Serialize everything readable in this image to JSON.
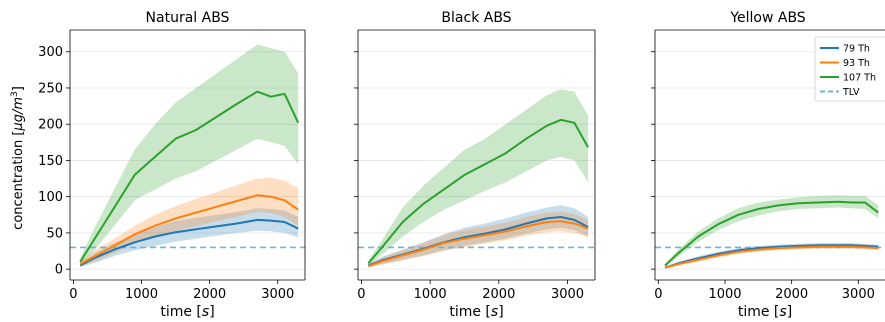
{
  "ylabel": "concentration [µg/m³]",
  "colors": {
    "79 Th": "#1f77b4",
    "93 Th": "#ff7f0e",
    "107 Th": "#2ca02c",
    "TLV": "#6fb3d8"
  },
  "chart_data": [
    {
      "type": "line",
      "title": "Natural ABS",
      "xlabel": "time [s]",
      "ylabel": "concentration [µg/m³]",
      "xlim": [
        -50,
        3400
      ],
      "ylim": [
        -15,
        330
      ],
      "xticks": [
        0,
        1000,
        2000,
        3000
      ],
      "yticks": [
        0,
        50,
        100,
        150,
        200,
        250,
        300
      ],
      "grid": true,
      "tlv": 30,
      "x": [
        100,
        300,
        600,
        900,
        1200,
        1500,
        1800,
        2100,
        2400,
        2700,
        2900,
        3100,
        3300
      ],
      "series": [
        {
          "name": "79 Th",
          "values": [
            5,
            15,
            27,
            37,
            45,
            51,
            55,
            59,
            63,
            68,
            67,
            65,
            56
          ],
          "lower": [
            3,
            8,
            18,
            26,
            32,
            38,
            42,
            46,
            50,
            53,
            52,
            50,
            44
          ],
          "upper": [
            7,
            22,
            36,
            48,
            58,
            66,
            71,
            75,
            79,
            84,
            83,
            81,
            72
          ]
        },
        {
          "name": "93 Th",
          "values": [
            7,
            17,
            32,
            48,
            60,
            70,
            78,
            86,
            94,
            102,
            100,
            95,
            82
          ],
          "lower": [
            4,
            10,
            22,
            36,
            45,
            53,
            59,
            66,
            72,
            79,
            77,
            72,
            60
          ],
          "upper": [
            10,
            25,
            42,
            60,
            75,
            87,
            97,
            106,
            116,
            125,
            126,
            122,
            112
          ]
        },
        {
          "name": "107 Th",
          "values": [
            10,
            40,
            85,
            130,
            155,
            180,
            192,
            210,
            228,
            245,
            238,
            242,
            202
          ],
          "lower": [
            5,
            25,
            60,
            95,
            110,
            125,
            135,
            150,
            165,
            180,
            175,
            170,
            145
          ],
          "upper": [
            15,
            55,
            110,
            165,
            200,
            230,
            250,
            270,
            290,
            310,
            305,
            300,
            270
          ]
        }
      ]
    },
    {
      "type": "line",
      "title": "Black ABS",
      "xlabel": "time [s]",
      "xlim": [
        -50,
        3400
      ],
      "ylim": [
        -15,
        330
      ],
      "xticks": [
        0,
        1000,
        2000,
        3000
      ],
      "grid": true,
      "tlv": 30,
      "x": [
        100,
        300,
        600,
        900,
        1200,
        1500,
        1800,
        2100,
        2400,
        2700,
        2900,
        3100,
        3300
      ],
      "series": [
        {
          "name": "79 Th",
          "values": [
            5,
            12,
            20,
            28,
            37,
            44,
            49,
            55,
            63,
            70,
            72,
            68,
            58
          ],
          "lower": [
            3,
            7,
            13,
            19,
            26,
            32,
            37,
            42,
            49,
            55,
            57,
            54,
            45
          ],
          "upper": [
            7,
            17,
            27,
            37,
            48,
            57,
            63,
            70,
            78,
            85,
            88,
            84,
            72
          ]
        },
        {
          "name": "93 Th",
          "values": [
            4,
            11,
            19,
            27,
            36,
            42,
            47,
            52,
            59,
            65,
            66,
            63,
            56
          ],
          "lower": [
            2,
            6,
            12,
            18,
            25,
            30,
            35,
            40,
            46,
            51,
            52,
            50,
            44
          ],
          "upper": [
            6,
            16,
            26,
            36,
            47,
            54,
            59,
            64,
            72,
            78,
            80,
            76,
            68
          ]
        },
        {
          "name": "107 Th",
          "values": [
            8,
            30,
            65,
            90,
            110,
            130,
            145,
            160,
            180,
            198,
            206,
            202,
            168
          ],
          "lower": [
            4,
            20,
            45,
            65,
            82,
            95,
            108,
            120,
            135,
            150,
            155,
            150,
            120
          ],
          "upper": [
            12,
            40,
            85,
            115,
            140,
            165,
            180,
            200,
            220,
            240,
            248,
            245,
            212
          ]
        }
      ]
    },
    {
      "type": "line",
      "title": "Yellow ABS",
      "xlabel": "time [s]",
      "xlim": [
        -50,
        3400
      ],
      "ylim": [
        -15,
        330
      ],
      "xticks": [
        0,
        1000,
        2000,
        3000
      ],
      "grid": true,
      "legend": "top-right",
      "tlv": 30,
      "x": [
        100,
        300,
        600,
        900,
        1200,
        1500,
        1800,
        2100,
        2400,
        2700,
        2900,
        3100,
        3300
      ],
      "series": [
        {
          "name": "79 Th",
          "values": [
            2,
            8,
            15,
            21,
            26,
            29,
            31,
            32,
            33,
            33,
            33,
            32,
            31
          ],
          "lower": [
            1,
            6,
            12,
            18,
            23,
            26,
            28,
            29,
            30,
            30,
            30,
            29,
            28
          ],
          "upper": [
            3,
            10,
            18,
            24,
            29,
            32,
            34,
            35,
            36,
            36,
            36,
            35,
            34
          ]
        },
        {
          "name": "93 Th",
          "values": [
            2,
            7,
            13,
            19,
            24,
            27,
            29,
            30,
            31,
            31,
            31,
            30,
            29
          ],
          "lower": [
            1,
            5,
            10,
            16,
            21,
            24,
            26,
            27,
            28,
            28,
            28,
            27,
            26
          ],
          "upper": [
            3,
            9,
            16,
            22,
            27,
            30,
            32,
            33,
            34,
            34,
            34,
            33,
            32
          ]
        },
        {
          "name": "107 Th",
          "values": [
            5,
            22,
            45,
            62,
            75,
            83,
            88,
            91,
            92,
            93,
            92,
            92,
            78
          ],
          "lower": [
            3,
            17,
            38,
            54,
            66,
            74,
            80,
            83,
            84,
            85,
            84,
            83,
            70
          ],
          "upper": [
            7,
            27,
            52,
            70,
            84,
            92,
            96,
            99,
            101,
            102,
            101,
            101,
            88
          ]
        }
      ],
      "legend_entries": [
        "79 Th",
        "93 Th",
        "107 Th",
        "TLV"
      ]
    }
  ]
}
